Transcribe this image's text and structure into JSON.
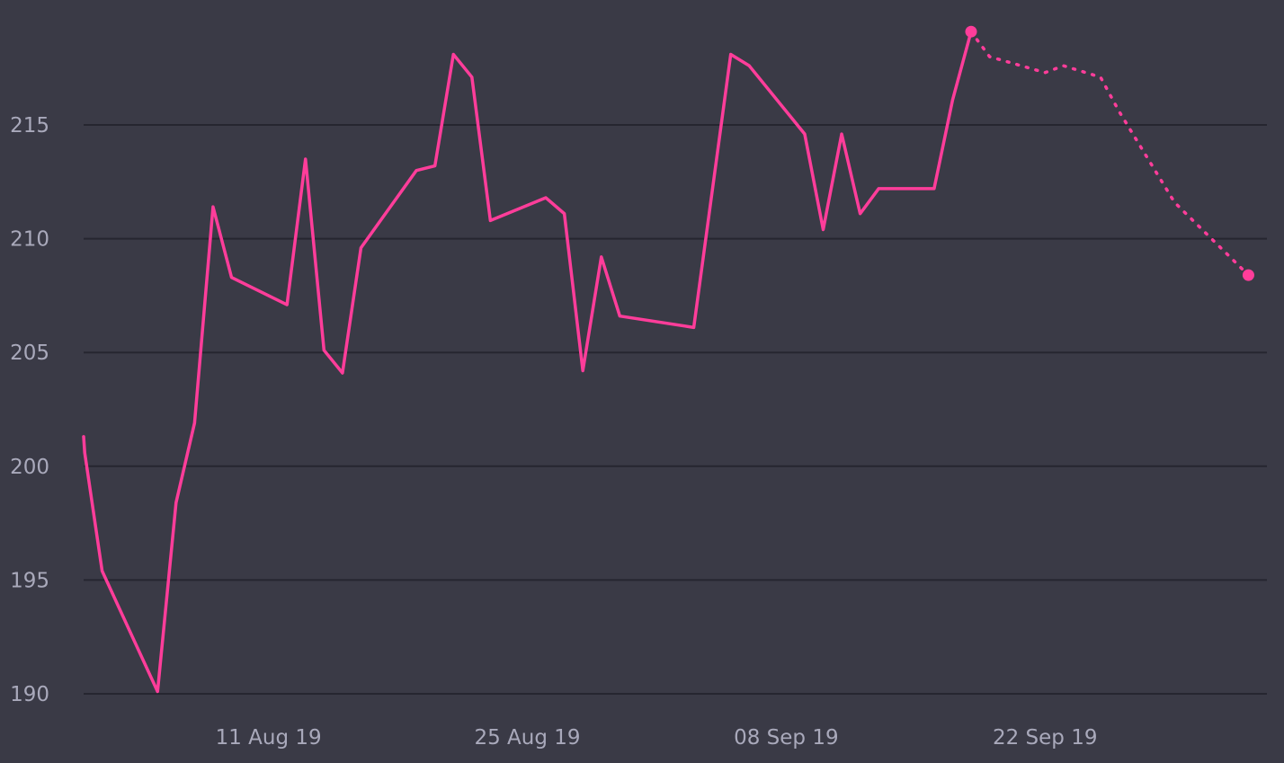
{
  "chart_data": {
    "type": "line",
    "title": "",
    "xlabel": "",
    "ylabel": "",
    "x_ticks": [
      {
        "date": "2019-08-11",
        "label": "11 Aug 19"
      },
      {
        "date": "2019-08-25",
        "label": "25 Aug 19"
      },
      {
        "date": "2019-09-08",
        "label": "08 Sep 19"
      },
      {
        "date": "2019-09-22",
        "label": "22 Sep 19"
      }
    ],
    "xlim": [
      "2019-08-01",
      "2019-10-04"
    ],
    "y_ticks": [
      190,
      195,
      200,
      205,
      210,
      215
    ],
    "ylim": [
      190,
      219.7
    ],
    "grid": "horizontal",
    "legend": "none",
    "colors": {
      "background": "#3a3a46",
      "grid": "#262630",
      "axis_text": "#a9a9bb",
      "series": "#ff3d9a"
    },
    "series": [
      {
        "style": "solid",
        "points": [
          {
            "x": "2019-08-01",
            "y": 201.3
          },
          {
            "x": "2019-08-01",
            "y": 200.6
          },
          {
            "x": "2019-08-02",
            "y": 195.4
          },
          {
            "x": "2019-08-05",
            "y": 190.1
          },
          {
            "x": "2019-08-06",
            "y": 198.4
          },
          {
            "x": "2019-08-07",
            "y": 201.9
          },
          {
            "x": "2019-08-08",
            "y": 211.4
          },
          {
            "x": "2019-08-09",
            "y": 208.3
          },
          {
            "x": "2019-08-12",
            "y": 207.1
          },
          {
            "x": "2019-08-13",
            "y": 213.5
          },
          {
            "x": "2019-08-14",
            "y": 205.1
          },
          {
            "x": "2019-08-15",
            "y": 204.1
          },
          {
            "x": "2019-08-16",
            "y": 209.6
          },
          {
            "x": "2019-08-19",
            "y": 213.0
          },
          {
            "x": "2019-08-20",
            "y": 213.2
          },
          {
            "x": "2019-08-21",
            "y": 218.1
          },
          {
            "x": "2019-08-22",
            "y": 217.1
          },
          {
            "x": "2019-08-23",
            "y": 210.8
          },
          {
            "x": "2019-08-26",
            "y": 211.8
          },
          {
            "x": "2019-08-27",
            "y": 211.1
          },
          {
            "x": "2019-08-28",
            "y": 204.2
          },
          {
            "x": "2019-08-29",
            "y": 209.2
          },
          {
            "x": "2019-08-30",
            "y": 206.6
          },
          {
            "x": "2019-09-03",
            "y": 206.1
          },
          {
            "x": "2019-09-05",
            "y": 218.1
          },
          {
            "x": "2019-09-06",
            "y": 217.6
          },
          {
            "x": "2019-09-09",
            "y": 214.6
          },
          {
            "x": "2019-09-10",
            "y": 210.4
          },
          {
            "x": "2019-09-11",
            "y": 214.6
          },
          {
            "x": "2019-09-12",
            "y": 211.1
          },
          {
            "x": "2019-09-13",
            "y": 212.2
          },
          {
            "x": "2019-09-16",
            "y": 212.2
          },
          {
            "x": "2019-09-17",
            "y": 216.1
          },
          {
            "x": "2019-09-18",
            "y": 219.1
          }
        ]
      },
      {
        "style": "dotted",
        "points": [
          {
            "x": "2019-09-18",
            "y": 219.1
          },
          {
            "x": "2019-09-19",
            "y": 218.0
          },
          {
            "x": "2019-09-22",
            "y": 217.3
          },
          {
            "x": "2019-09-23",
            "y": 217.6
          },
          {
            "x": "2019-09-25",
            "y": 217.1
          },
          {
            "x": "2019-09-26",
            "y": 215.6
          },
          {
            "x": "2019-09-29",
            "y": 211.6
          },
          {
            "x": "2019-10-03",
            "y": 208.4
          }
        ]
      }
    ]
  }
}
